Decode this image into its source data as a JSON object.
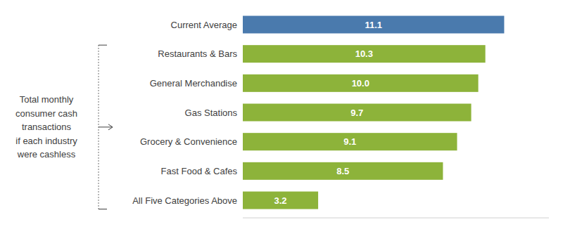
{
  "chart_data": {
    "type": "bar",
    "orientation": "horizontal",
    "categories": [
      "All Five Categories Above",
      "Fast Food & Cafes",
      "Grocery & Convenience",
      "Gas Stations",
      "General Merchandise",
      "Restaurants & Bars",
      "Current Average"
    ],
    "values": [
      3.2,
      8.5,
      9.1,
      9.7,
      10.0,
      10.3,
      11.1
    ],
    "value_labels": [
      "3.2",
      "8.5",
      "9.1",
      "9.7",
      "10.0",
      "10.3",
      "11.1"
    ],
    "colors": [
      "#8db33a",
      "#8db33a",
      "#8db33a",
      "#8db33a",
      "#8db33a",
      "#8db33a",
      "#4a7aad"
    ],
    "xlim": [
      0,
      13
    ],
    "data_labels": true,
    "tick_labels": "y",
    "grid": false,
    "annotation": "Total monthly\nconsumer cash\ntransactions\nif each industry\nwere cashless"
  }
}
